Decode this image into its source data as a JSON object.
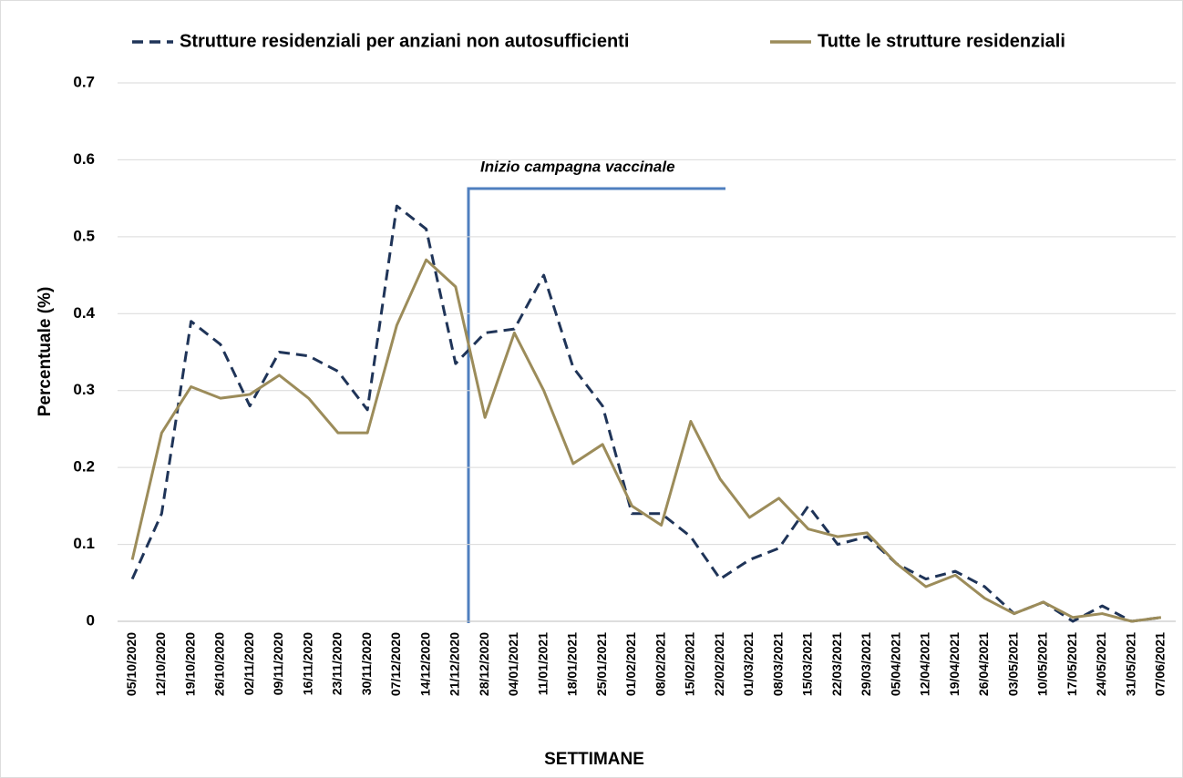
{
  "chart_data": {
    "type": "line",
    "annotation": "Inizio campagna vaccinale",
    "xlabel": "SETTIMANE",
    "ylabel": "Percentuale (%)",
    "categories": [
      "05/10/2020",
      "12/10/2020",
      "19/10/2020",
      "26/10/2020",
      "02/11/2020",
      "09/11/2020",
      "16/11/2020",
      "23/11/2020",
      "30/11/2020",
      "07/12/2020",
      "14/12/2020",
      "21/12/2020",
      "28/12/2020",
      "04/01/2021",
      "11/01/2021",
      "18/01/2021",
      "25/01/2021",
      "01/02/2021",
      "08/02/2021",
      "15/02/2021",
      "22/02/2021",
      "01/03/2021",
      "08/03/2021",
      "15/03/2021",
      "22/03/2021",
      "29/03/2021",
      "05/04/2021",
      "12/04/2021",
      "19/04/2021",
      "26/04/2021",
      "03/05/2021",
      "10/05/2021",
      "17/05/2021",
      "24/05/2021",
      "31/05/2021",
      "07/06/2021"
    ],
    "series": [
      {
        "name": "Strutture residenziali per anziani non autosufficienti",
        "color": "#1f3458",
        "dashed": true,
        "values": [
          0.055,
          0.14,
          0.39,
          0.36,
          0.28,
          0.35,
          0.345,
          0.325,
          0.275,
          0.54,
          0.51,
          0.335,
          0.375,
          0.38,
          0.45,
          0.33,
          0.28,
          0.14,
          0.14,
          0.11,
          0.055,
          0.08,
          0.095,
          0.15,
          0.1,
          0.11,
          0.075,
          0.055,
          0.065,
          0.045,
          0.01,
          0.025,
          0.0,
          0.02,
          0.0,
          0.005
        ]
      },
      {
        "name": "Tutte le strutture residenziali",
        "color": "#9c8c5a",
        "dashed": false,
        "values": [
          0.08,
          0.245,
          0.305,
          0.29,
          0.295,
          0.32,
          0.29,
          0.245,
          0.245,
          0.385,
          0.47,
          0.435,
          0.265,
          0.375,
          0.3,
          0.205,
          0.23,
          0.15,
          0.125,
          0.26,
          0.185,
          0.135,
          0.16,
          0.12,
          0.11,
          0.115,
          0.075,
          0.045,
          0.06,
          0.03,
          0.01,
          0.025,
          0.005,
          0.01,
          0.0,
          0.005
        ]
      }
    ],
    "ylim": [
      0,
      0.7
    ],
    "yticks": [
      0,
      0.1,
      0.2,
      0.3,
      0.4,
      0.5,
      0.6,
      0.7
    ],
    "grid": true,
    "legend": "top"
  }
}
